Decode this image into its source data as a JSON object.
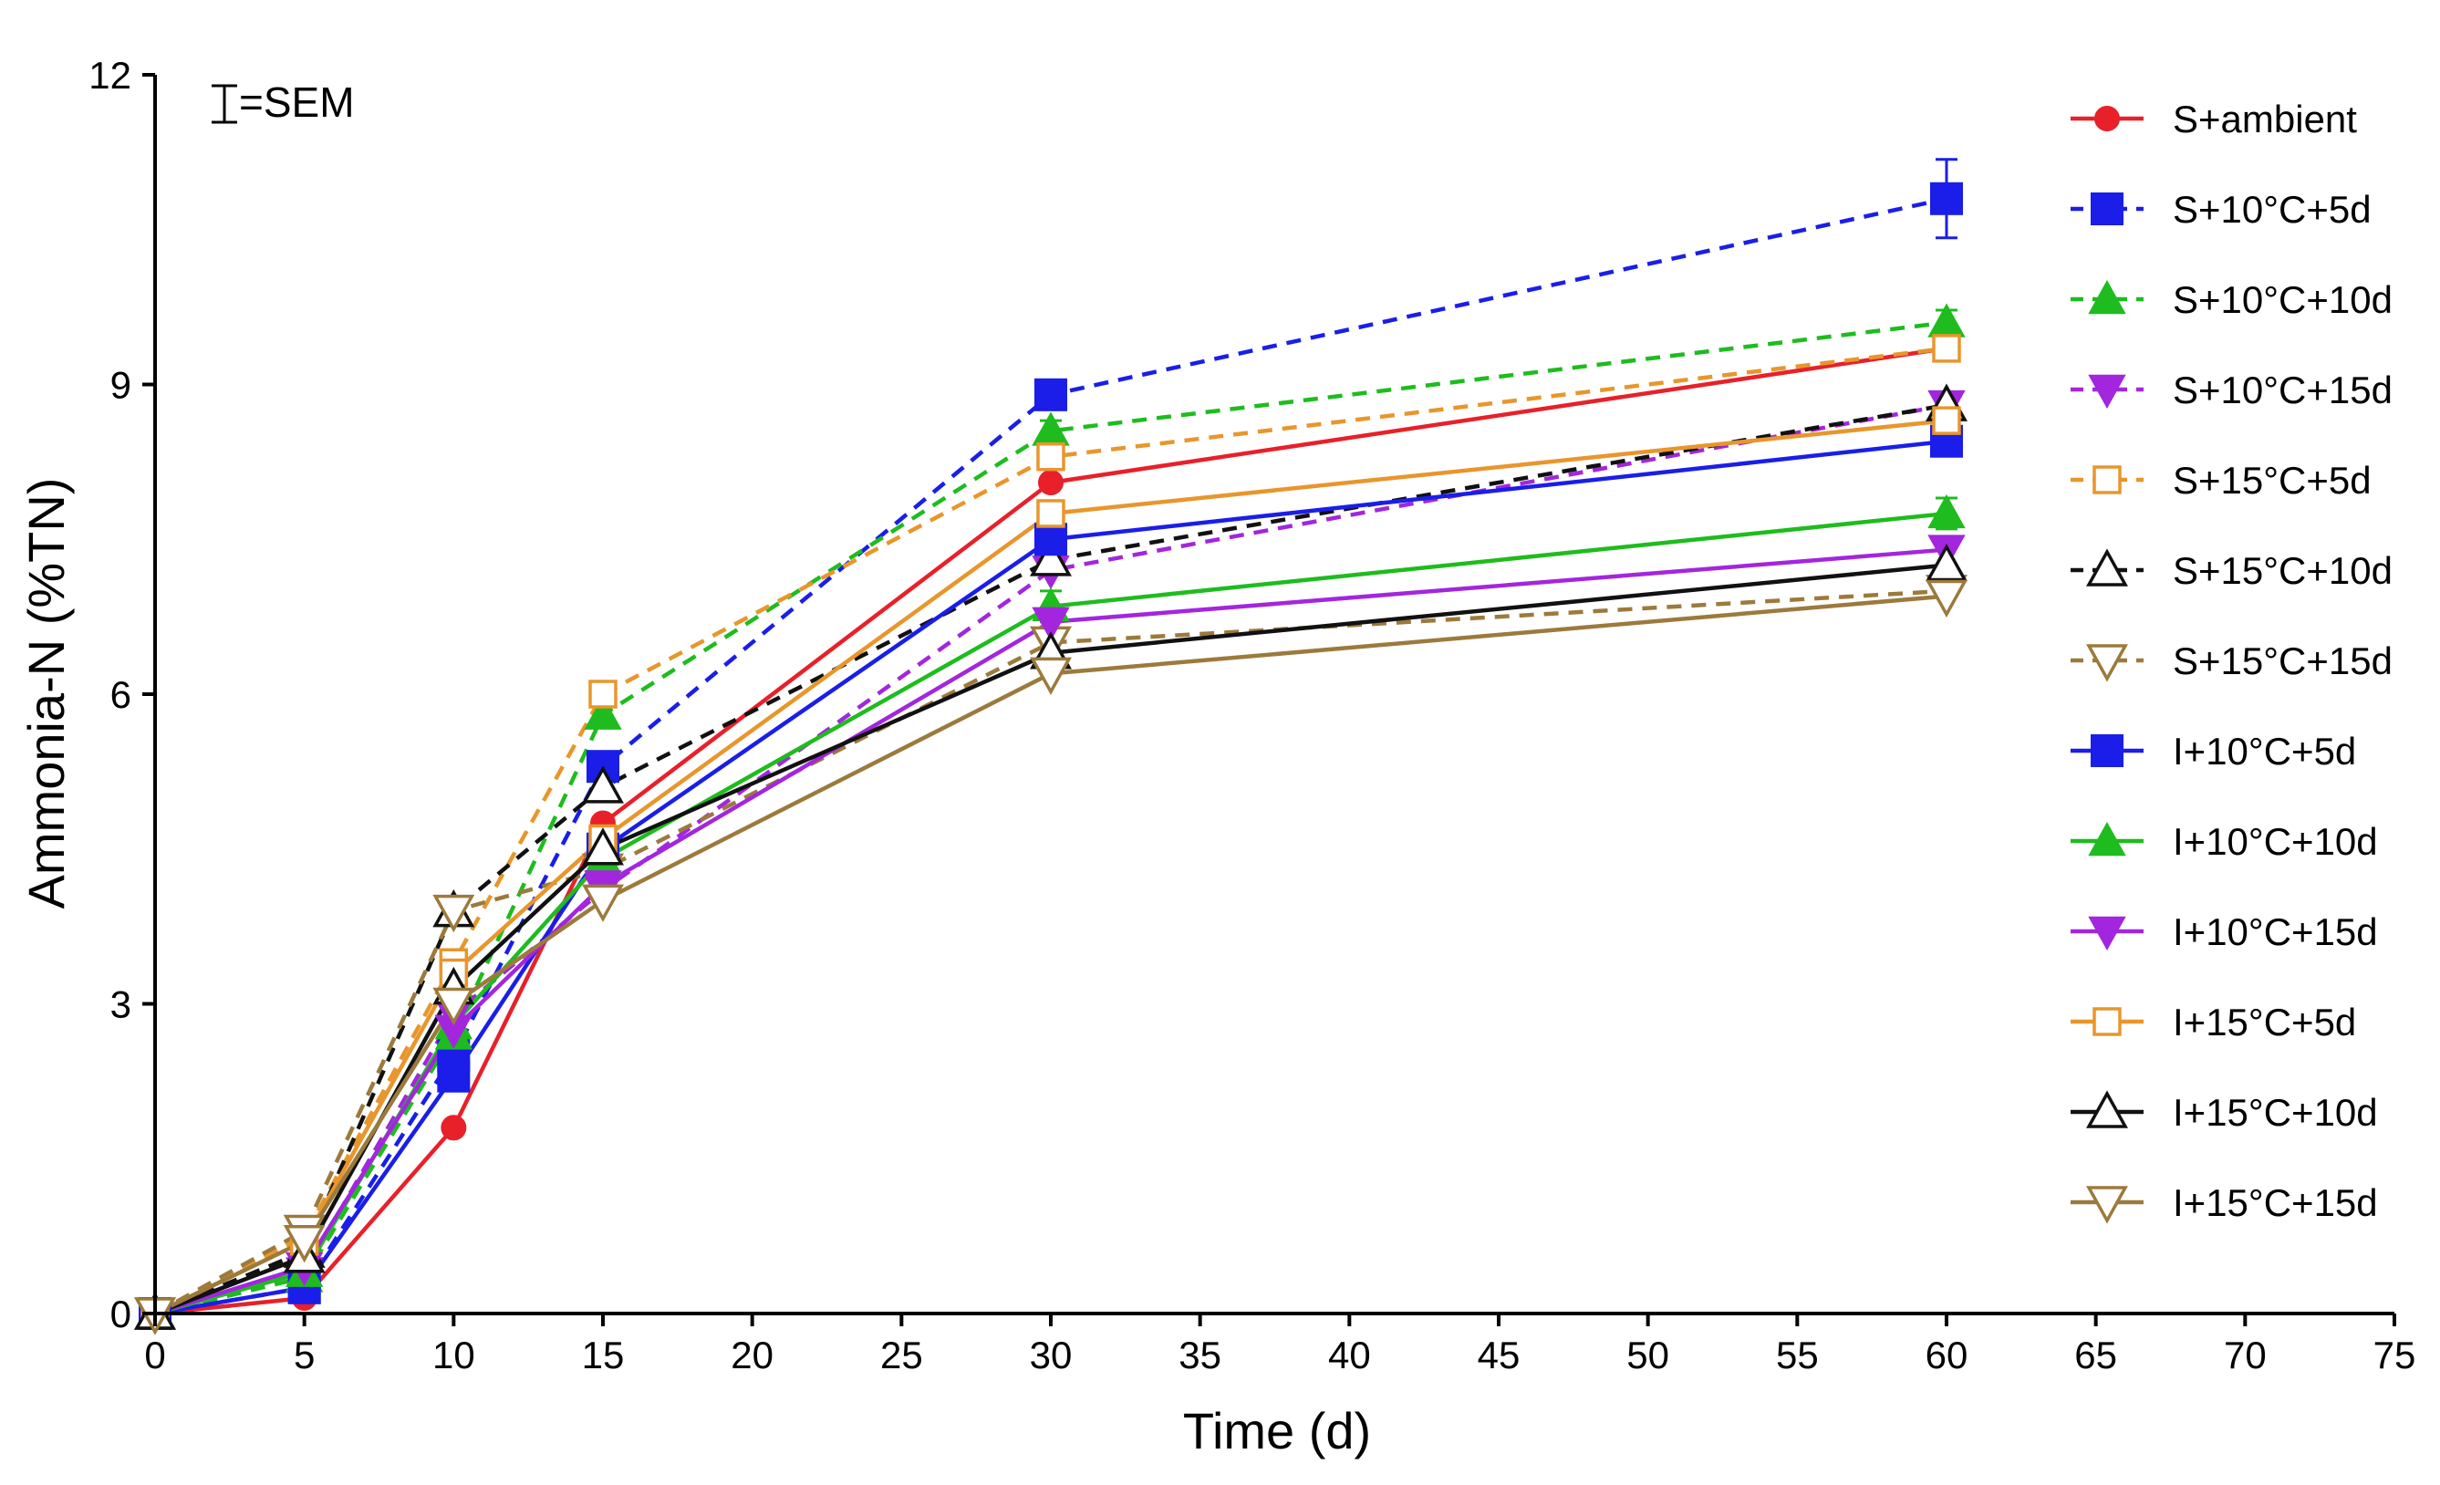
{
  "chart_data": {
    "type": "line",
    "title": "",
    "xlabel": "Time (d)",
    "ylabel": "Ammonia-N (%TN)",
    "xlim": [
      0,
      75
    ],
    "ylim": [
      0,
      12
    ],
    "xticks": [
      "0",
      "5",
      "10",
      "15",
      "20",
      "25",
      "30",
      "35",
      "40",
      "45",
      "50",
      "55",
      "60",
      "65",
      "70",
      "75"
    ],
    "yticks": [
      "0",
      "3",
      "6",
      "9",
      "12"
    ],
    "grid": false,
    "legend_position": "right",
    "annotation": "=SEM",
    "x": [
      0,
      5,
      10,
      15,
      30,
      60
    ],
    "series": [
      {
        "name": "S+ambient",
        "color": "#e8202a",
        "dash": "solid",
        "marker": "circle",
        "filled": true,
        "values": [
          0,
          0.15,
          1.8,
          4.75,
          8.05,
          9.35
        ],
        "sem": [
          0,
          0,
          0,
          0,
          0,
          0
        ]
      },
      {
        "name": "S+10°C+5d",
        "color": "#1a1ee8",
        "dash": "dashed",
        "marker": "square",
        "filled": true,
        "values": [
          0,
          0.25,
          2.5,
          5.3,
          8.9,
          10.8
        ],
        "sem": [
          0,
          0,
          0,
          0,
          0.1,
          0.38
        ]
      },
      {
        "name": "S+10°C+10d",
        "color": "#1ebc1e",
        "dash": "dashed",
        "marker": "triangle-up",
        "filled": true,
        "values": [
          0,
          0.35,
          2.7,
          5.8,
          8.55,
          9.6
        ],
        "sem": [
          0,
          0,
          0,
          0,
          0.1,
          0.12
        ]
      },
      {
        "name": "S+10°C+15d",
        "color": "#a326de",
        "dash": "dashed",
        "marker": "triangle-down",
        "filled": true,
        "values": [
          0,
          0.4,
          2.9,
          4.1,
          7.2,
          8.8
        ],
        "sem": [
          0,
          0,
          0,
          0,
          0,
          0
        ]
      },
      {
        "name": "S+15°C+5d",
        "color": "#e8962c",
        "dash": "dashed",
        "marker": "square",
        "filled": false,
        "values": [
          0,
          0.75,
          3.4,
          6.0,
          8.3,
          9.35
        ],
        "sem": [
          0,
          0,
          0,
          0,
          0,
          0
        ]
      },
      {
        "name": "S+15°C+10d",
        "color": "#111111",
        "dash": "dashed",
        "marker": "triangle-up",
        "filled": false,
        "values": [
          0,
          0.6,
          3.9,
          5.1,
          7.3,
          8.8
        ],
        "sem": [
          0,
          0,
          0,
          0,
          0,
          0
        ]
      },
      {
        "name": "S+15°C+15d",
        "color": "#9c7a3c",
        "dash": "dashed",
        "marker": "triangle-down",
        "filled": false,
        "values": [
          0,
          0.8,
          3.9,
          4.3,
          6.5,
          7.0
        ],
        "sem": [
          0,
          0,
          0,
          0,
          0,
          0
        ]
      },
      {
        "name": "I+10°C+5d",
        "color": "#1a1ee8",
        "dash": "solid",
        "marker": "square",
        "filled": true,
        "values": [
          0,
          0.25,
          2.3,
          4.5,
          7.5,
          8.45
        ],
        "sem": [
          0,
          0,
          0,
          0,
          0,
          0
        ]
      },
      {
        "name": "I+10°C+10d",
        "color": "#1ebc1e",
        "dash": "solid",
        "marker": "triangle-up",
        "filled": true,
        "values": [
          0,
          0.4,
          2.8,
          4.4,
          6.85,
          7.75
        ],
        "sem": [
          0,
          0,
          0,
          0,
          0.15,
          0.15
        ]
      },
      {
        "name": "I+10°C+15d",
        "color": "#a326de",
        "dash": "solid",
        "marker": "triangle-down",
        "filled": true,
        "values": [
          0,
          0.45,
          2.75,
          4.15,
          6.7,
          7.4
        ],
        "sem": [
          0,
          0,
          0,
          0,
          0,
          0
        ]
      },
      {
        "name": "I+15°C+5d",
        "color": "#e8962c",
        "dash": "solid",
        "marker": "square",
        "filled": false,
        "values": [
          0,
          0.7,
          3.3,
          4.6,
          7.75,
          8.65
        ],
        "sem": [
          0,
          0,
          0,
          0,
          0,
          0
        ]
      },
      {
        "name": "I+15°C+10d",
        "color": "#111111",
        "dash": "solid",
        "marker": "triangle-up",
        "filled": false,
        "values": [
          0,
          0.55,
          3.15,
          4.5,
          6.4,
          7.25
        ],
        "sem": [
          0,
          0,
          0,
          0,
          0,
          0
        ]
      },
      {
        "name": "I+15°C+15d",
        "color": "#9c7a3c",
        "dash": "solid",
        "marker": "triangle-down",
        "filled": false,
        "values": [
          0,
          0.7,
          3.0,
          4.0,
          6.2,
          6.95
        ],
        "sem": [
          0,
          0,
          0,
          0,
          0,
          0
        ]
      }
    ]
  }
}
